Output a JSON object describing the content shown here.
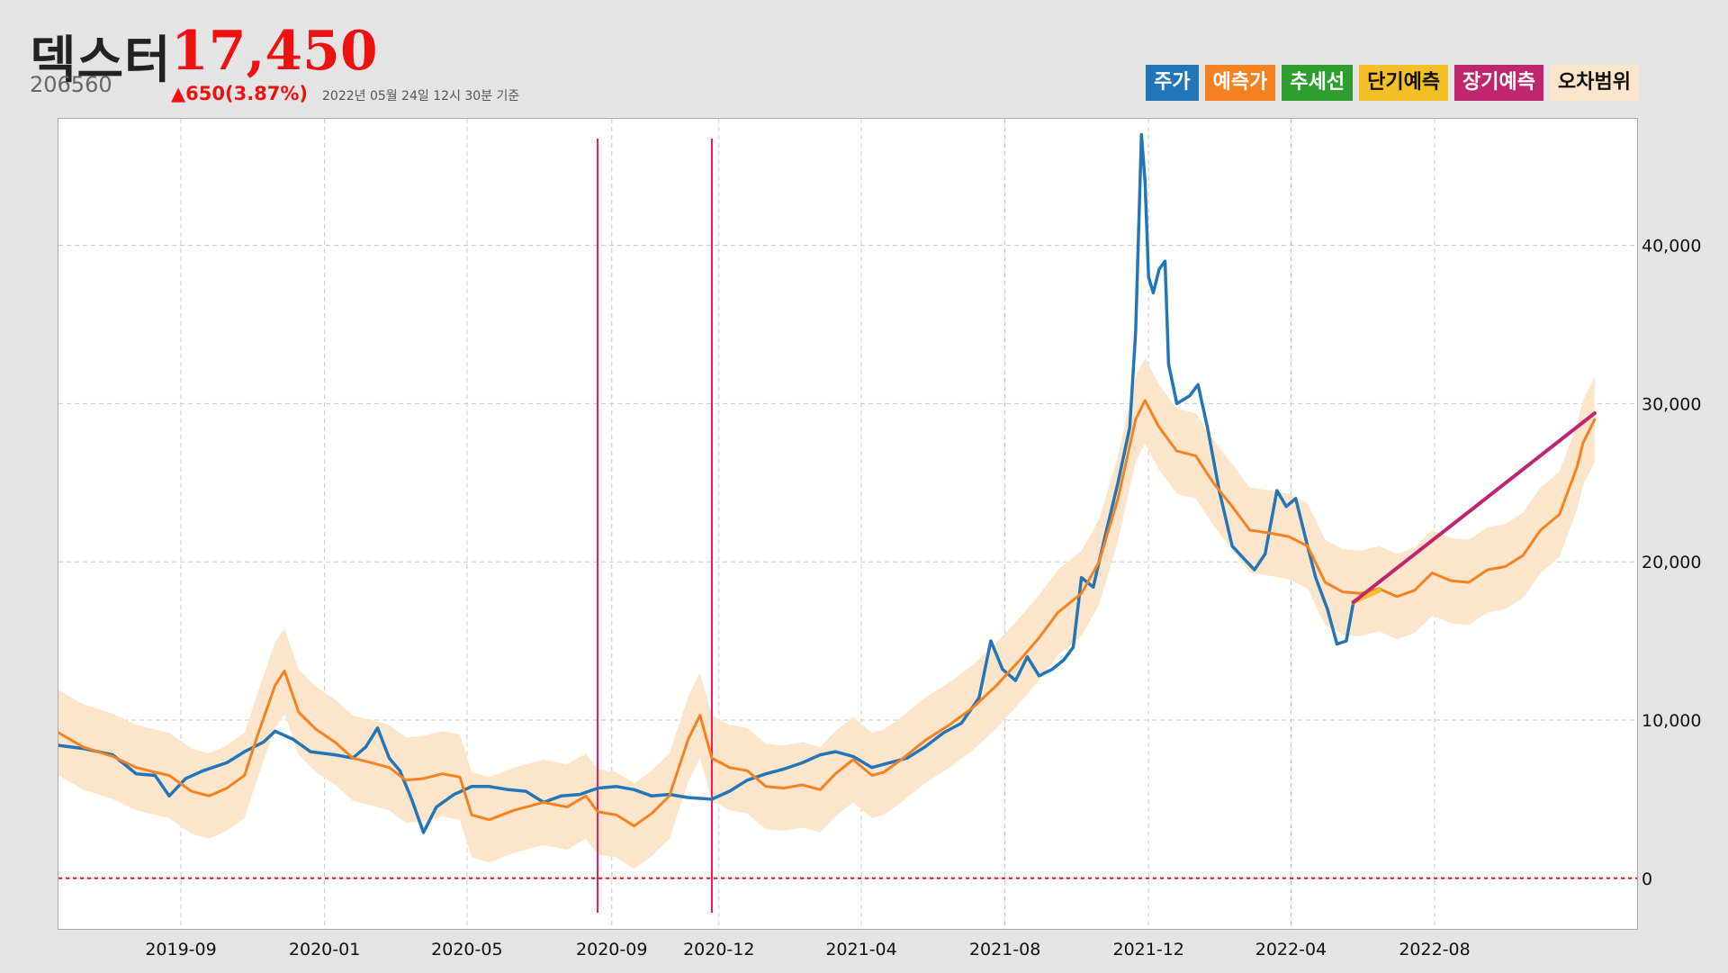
{
  "header": {
    "name": "덱스터",
    "price": "17,450",
    "code": "206560",
    "change": "▲650(3.87%)",
    "as_of": "2022년 05월 24일 12시 30분 기준"
  },
  "legend": [
    {
      "label": "주가",
      "color": "#2276b8",
      "text_color": "#ffffff"
    },
    {
      "label": "예측가",
      "color": "#f58220",
      "text_color": "#ffffff"
    },
    {
      "label": "추세선",
      "color": "#2e9e2e",
      "text_color": "#ffffff"
    },
    {
      "label": "단기예측",
      "color": "#f5c026",
      "text_color": "#111111"
    },
    {
      "label": "장기예측",
      "color": "#c0266e",
      "text_color": "#ffffff"
    },
    {
      "label": "오차범위",
      "color": "#fde5cc",
      "text_color": "#111111"
    }
  ],
  "chart_data": {
    "type": "line",
    "x_tick_labels": [
      "2019-09",
      "2020-01",
      "2020-05",
      "2020-09",
      "2020-12",
      "2021-04",
      "2021-08",
      "2021-12",
      "2022-04",
      "2022-08"
    ],
    "y_tick_labels": [
      "0",
      "10,000",
      "20,000",
      "30,000",
      "40,000"
    ],
    "x_range": [
      "2019-05-20",
      "2023-01-20"
    ],
    "ylim": [
      -3200,
      48000
    ],
    "y_axis_side": "right",
    "grid": true,
    "reference_line": {
      "y": 0,
      "color": "#ee1111",
      "style": "dotted"
    },
    "vertical_markers": {
      "dates": [
        "2020-08-20",
        "2020-11-25"
      ],
      "color": "#e8175d"
    },
    "series": [
      {
        "name": "주가",
        "color": "#2276b8",
        "points": [
          [
            "2019-05-20",
            8400
          ],
          [
            "2019-06-10",
            8200
          ],
          [
            "2019-07-05",
            7800
          ],
          [
            "2019-07-25",
            6600
          ],
          [
            "2019-08-10",
            6500
          ],
          [
            "2019-08-22",
            5200
          ],
          [
            "2019-09-05",
            6300
          ],
          [
            "2019-09-20",
            6800
          ],
          [
            "2019-10-10",
            7300
          ],
          [
            "2019-10-25",
            8000
          ],
          [
            "2019-11-10",
            8600
          ],
          [
            "2019-11-20",
            9300
          ],
          [
            "2019-12-05",
            8800
          ],
          [
            "2019-12-20",
            8000
          ],
          [
            "2020-01-10",
            7800
          ],
          [
            "2020-01-25",
            7600
          ],
          [
            "2020-02-05",
            8300
          ],
          [
            "2020-02-15",
            9500
          ],
          [
            "2020-02-25",
            7600
          ],
          [
            "2020-03-05",
            6800
          ],
          [
            "2020-03-15",
            5000
          ],
          [
            "2020-03-25",
            2900
          ],
          [
            "2020-04-05",
            4500
          ],
          [
            "2020-04-20",
            5300
          ],
          [
            "2020-05-05",
            5800
          ],
          [
            "2020-05-20",
            5800
          ],
          [
            "2020-06-05",
            5600
          ],
          [
            "2020-06-20",
            5500
          ],
          [
            "2020-07-05",
            4800
          ],
          [
            "2020-07-20",
            5200
          ],
          [
            "2020-08-05",
            5300
          ],
          [
            "2020-08-20",
            5700
          ],
          [
            "2020-09-05",
            5800
          ],
          [
            "2020-09-20",
            5600
          ],
          [
            "2020-10-05",
            5200
          ],
          [
            "2020-10-20",
            5300
          ],
          [
            "2020-11-05",
            5100
          ],
          [
            "2020-11-25",
            5000
          ],
          [
            "2020-12-10",
            5500
          ],
          [
            "2020-12-25",
            6200
          ],
          [
            "2021-01-10",
            6600
          ],
          [
            "2021-01-25",
            6900
          ],
          [
            "2021-02-10",
            7300
          ],
          [
            "2021-02-25",
            7800
          ],
          [
            "2021-03-10",
            8000
          ],
          [
            "2021-03-25",
            7700
          ],
          [
            "2021-04-10",
            7000
          ],
          [
            "2021-04-25",
            7300
          ],
          [
            "2021-05-10",
            7600
          ],
          [
            "2021-05-25",
            8300
          ],
          [
            "2021-06-10",
            9200
          ],
          [
            "2021-06-25",
            9800
          ],
          [
            "2021-07-10",
            11400
          ],
          [
            "2021-07-20",
            15000
          ],
          [
            "2021-07-30",
            13200
          ],
          [
            "2021-08-10",
            12500
          ],
          [
            "2021-08-20",
            14000
          ],
          [
            "2021-08-30",
            12800
          ],
          [
            "2021-09-10",
            13200
          ],
          [
            "2021-09-20",
            13800
          ],
          [
            "2021-09-28",
            14600
          ],
          [
            "2021-10-05",
            19000
          ],
          [
            "2021-10-15",
            18400
          ],
          [
            "2021-10-25",
            21600
          ],
          [
            "2021-11-05",
            25000
          ],
          [
            "2021-11-15",
            28500
          ],
          [
            "2021-11-20",
            34500
          ],
          [
            "2021-11-25",
            47000
          ],
          [
            "2021-11-28",
            44000
          ],
          [
            "2021-12-01",
            38000
          ],
          [
            "2021-12-05",
            37000
          ],
          [
            "2021-12-10",
            38500
          ],
          [
            "2021-12-15",
            39000
          ],
          [
            "2021-12-18",
            32500
          ],
          [
            "2021-12-25",
            30000
          ],
          [
            "2022-01-05",
            30500
          ],
          [
            "2022-01-12",
            31200
          ],
          [
            "2022-01-20",
            28500
          ],
          [
            "2022-01-30",
            24500
          ],
          [
            "2022-02-10",
            21000
          ],
          [
            "2022-02-20",
            20200
          ],
          [
            "2022-03-01",
            19500
          ],
          [
            "2022-03-10",
            20500
          ],
          [
            "2022-03-20",
            24500
          ],
          [
            "2022-03-28",
            23500
          ],
          [
            "2022-04-05",
            24000
          ],
          [
            "2022-04-15",
            21000
          ],
          [
            "2022-04-22",
            19000
          ],
          [
            "2022-05-02",
            17000
          ],
          [
            "2022-05-10",
            14800
          ],
          [
            "2022-05-18",
            15000
          ],
          [
            "2022-05-24",
            17450
          ]
        ]
      },
      {
        "name": "예측가",
        "color": "#f58220",
        "band_color": "#fde5cc",
        "band_half_width": 2700,
        "points": [
          [
            "2019-05-20",
            9200
          ],
          [
            "2019-06-10",
            8300
          ],
          [
            "2019-07-05",
            7700
          ],
          [
            "2019-07-25",
            7000
          ],
          [
            "2019-08-10",
            6700
          ],
          [
            "2019-08-22",
            6500
          ],
          [
            "2019-09-10",
            5500
          ],
          [
            "2019-09-25",
            5200
          ],
          [
            "2019-10-10",
            5700
          ],
          [
            "2019-10-25",
            6500
          ],
          [
            "2019-11-05",
            9000
          ],
          [
            "2019-11-20",
            12200
          ],
          [
            "2019-11-28",
            13100
          ],
          [
            "2019-12-10",
            10500
          ],
          [
            "2019-12-25",
            9400
          ],
          [
            "2020-01-10",
            8600
          ],
          [
            "2020-01-25",
            7600
          ],
          [
            "2020-02-10",
            7300
          ],
          [
            "2020-02-25",
            7000
          ],
          [
            "2020-03-10",
            6200
          ],
          [
            "2020-03-25",
            6300
          ],
          [
            "2020-04-10",
            6600
          ],
          [
            "2020-04-25",
            6400
          ],
          [
            "2020-05-05",
            4000
          ],
          [
            "2020-05-20",
            3700
          ],
          [
            "2020-06-10",
            4300
          ],
          [
            "2020-07-05",
            4800
          ],
          [
            "2020-07-25",
            4500
          ],
          [
            "2020-08-10",
            5200
          ],
          [
            "2020-08-20",
            4200
          ],
          [
            "2020-09-05",
            4000
          ],
          [
            "2020-09-20",
            3300
          ],
          [
            "2020-10-05",
            4100
          ],
          [
            "2020-10-20",
            5200
          ],
          [
            "2020-11-05",
            8800
          ],
          [
            "2020-11-15",
            10300
          ],
          [
            "2020-11-25",
            7600
          ],
          [
            "2020-12-10",
            7000
          ],
          [
            "2020-12-25",
            6800
          ],
          [
            "2021-01-10",
            5800
          ],
          [
            "2021-01-25",
            5700
          ],
          [
            "2021-02-10",
            5900
          ],
          [
            "2021-02-25",
            5600
          ],
          [
            "2021-03-10",
            6600
          ],
          [
            "2021-03-25",
            7500
          ],
          [
            "2021-04-10",
            6500
          ],
          [
            "2021-04-20",
            6700
          ],
          [
            "2021-05-05",
            7500
          ],
          [
            "2021-05-25",
            8700
          ],
          [
            "2021-06-15",
            9700
          ],
          [
            "2021-07-05",
            10800
          ],
          [
            "2021-07-25",
            12200
          ],
          [
            "2021-08-15",
            13900
          ],
          [
            "2021-08-30",
            15200
          ],
          [
            "2021-09-15",
            16800
          ],
          [
            "2021-10-05",
            18000
          ],
          [
            "2021-10-20",
            20000
          ],
          [
            "2021-11-05",
            24000
          ],
          [
            "2021-11-20",
            29000
          ],
          [
            "2021-11-28",
            30200
          ],
          [
            "2021-12-10",
            28500
          ],
          [
            "2021-12-25",
            27000
          ],
          [
            "2022-01-10",
            26700
          ],
          [
            "2022-01-25",
            25000
          ],
          [
            "2022-02-10",
            23500
          ],
          [
            "2022-02-25",
            22000
          ],
          [
            "2022-03-15",
            21800
          ],
          [
            "2022-03-30",
            21600
          ],
          [
            "2022-04-15",
            21000
          ],
          [
            "2022-04-30",
            18700
          ],
          [
            "2022-05-15",
            18100
          ],
          [
            "2022-05-30",
            18000
          ],
          [
            "2022-06-15",
            18300
          ],
          [
            "2022-06-30",
            17800
          ],
          [
            "2022-07-15",
            18200
          ],
          [
            "2022-07-30",
            19300
          ],
          [
            "2022-08-15",
            18800
          ],
          [
            "2022-08-30",
            18700
          ],
          [
            "2022-09-15",
            19500
          ],
          [
            "2022-09-30",
            19700
          ],
          [
            "2022-10-15",
            20400
          ],
          [
            "2022-10-30",
            22000
          ],
          [
            "2022-11-15",
            23000
          ],
          [
            "2022-11-30",
            26000
          ],
          [
            "2022-12-05",
            27500
          ],
          [
            "2022-12-15",
            29000
          ]
        ]
      },
      {
        "name": "단기예측",
        "color": "#f5c026",
        "points": [
          [
            "2022-05-24",
            17450
          ],
          [
            "2022-06-15",
            18200
          ]
        ]
      },
      {
        "name": "장기예측",
        "color": "#c0266e",
        "points": [
          [
            "2022-05-24",
            17450
          ],
          [
            "2022-12-15",
            29400
          ]
        ]
      }
    ]
  }
}
